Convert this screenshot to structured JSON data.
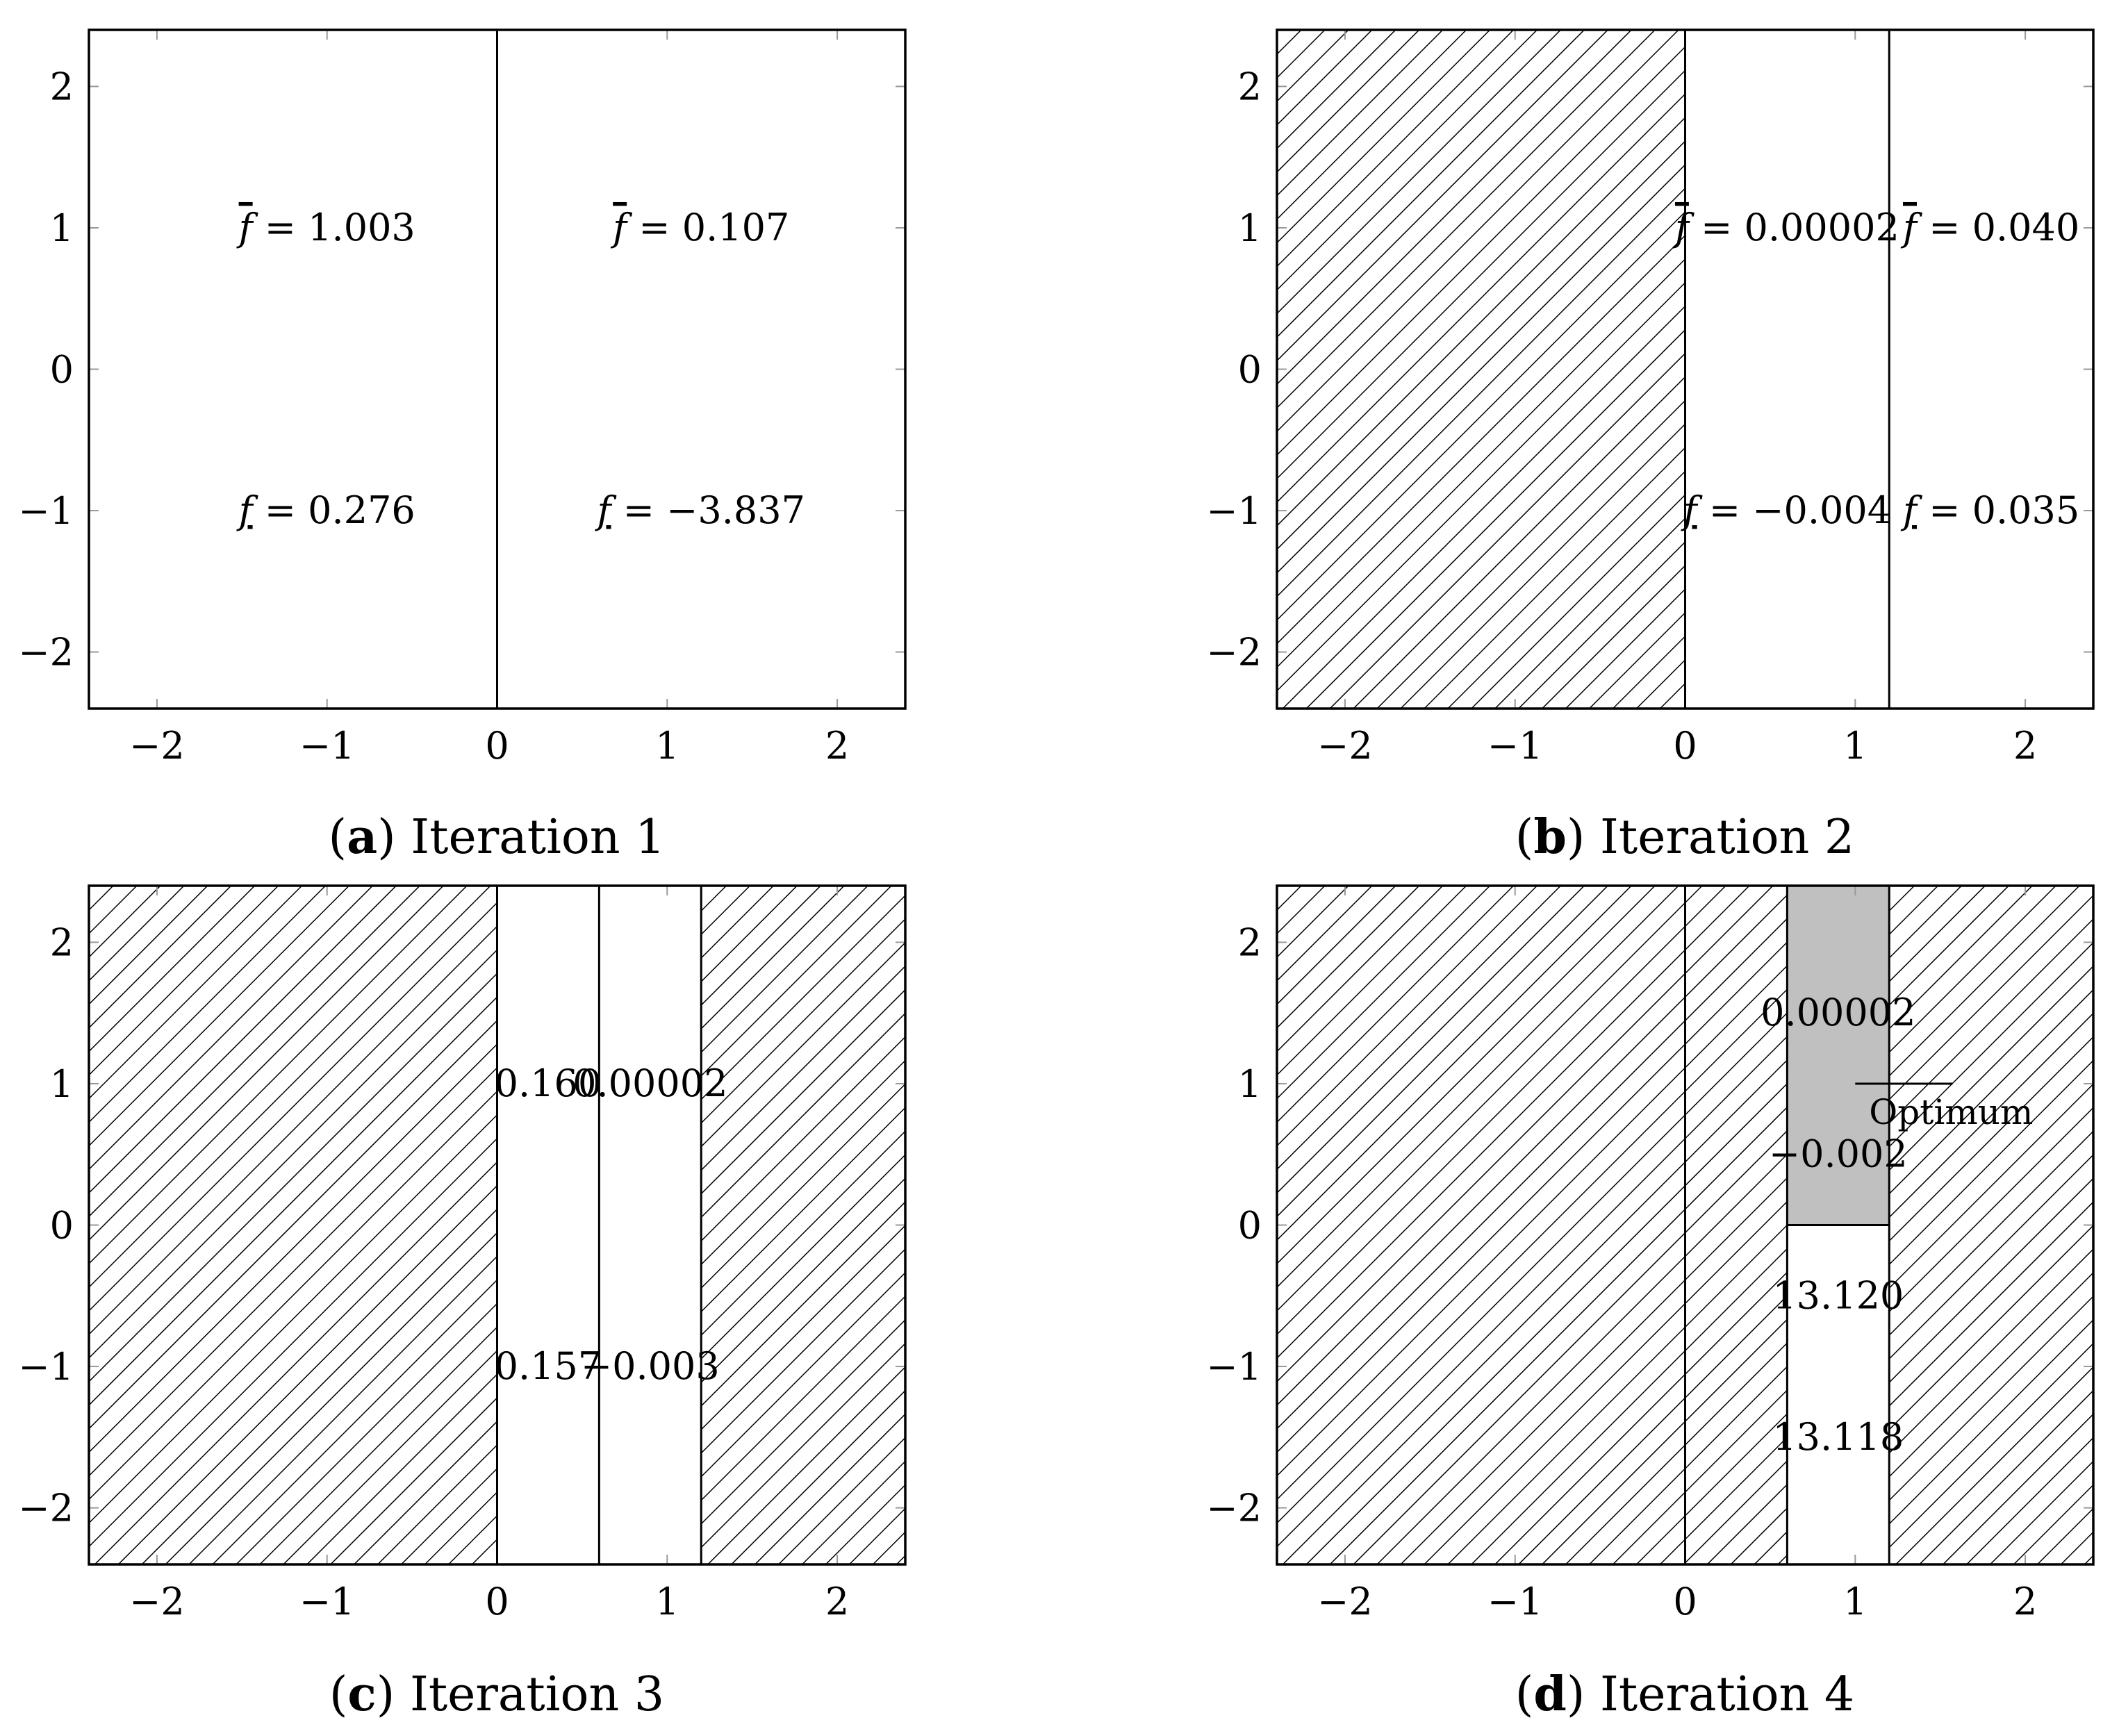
{
  "chart_data": [
    {
      "type": "region-partition",
      "caption_letter": "a",
      "caption_text": "Iteration 1",
      "xlim": [
        -2.4,
        2.4
      ],
      "ylim": [
        -2.4,
        2.4
      ],
      "xticks": [
        -2,
        -1,
        0,
        1,
        2
      ],
      "yticks": [
        -2,
        -1,
        0,
        1,
        2
      ],
      "xtick_labels": [
        "−2",
        "−1",
        "0",
        "1",
        "2"
      ],
      "ytick_labels": [
        "−2",
        "−1",
        "0",
        "1",
        "2"
      ],
      "hatched": [],
      "shaded": [],
      "dividers": [
        {
          "orient": "v",
          "at": 0,
          "from": -2.4,
          "to": 2.4
        }
      ],
      "labels": [
        {
          "x": -1.0,
          "y": 1.0,
          "kind": "upper",
          "value": "1.003"
        },
        {
          "x": -1.0,
          "y": -1.0,
          "kind": "lower",
          "value": "0.276"
        },
        {
          "x": 1.2,
          "y": 1.0,
          "kind": "upper",
          "value": "0.107"
        },
        {
          "x": 1.2,
          "y": -1.0,
          "kind": "lower",
          "value": "−3.837"
        }
      ]
    },
    {
      "type": "region-partition",
      "caption_letter": "b",
      "caption_text": "Iteration 2",
      "xlim": [
        -2.4,
        2.4
      ],
      "ylim": [
        -2.4,
        2.4
      ],
      "xticks": [
        -2,
        -1,
        0,
        1,
        2
      ],
      "yticks": [
        -2,
        -1,
        0,
        1,
        2
      ],
      "xtick_labels": [
        "−2",
        "−1",
        "0",
        "1",
        "2"
      ],
      "ytick_labels": [
        "−2",
        "−1",
        "0",
        "1",
        "2"
      ],
      "hatched": [
        [
          -2.4,
          -2.4,
          0,
          2.4
        ]
      ],
      "shaded": [],
      "dividers": [
        {
          "orient": "v",
          "at": 0,
          "from": -2.4,
          "to": 2.4
        },
        {
          "orient": "v",
          "at": 1.2,
          "from": -2.4,
          "to": 2.4
        }
      ],
      "labels": [
        {
          "x": 0.6,
          "y": 1.0,
          "kind": "upper",
          "value": "0.00002"
        },
        {
          "x": 0.6,
          "y": -1.0,
          "kind": "lower",
          "value": "−0.004"
        },
        {
          "x": 1.8,
          "y": 1.0,
          "kind": "upper",
          "value": "0.040"
        },
        {
          "x": 1.8,
          "y": -1.0,
          "kind": "lower",
          "value": "0.035"
        }
      ]
    },
    {
      "type": "region-partition",
      "caption_letter": "c",
      "caption_text": "Iteration 3",
      "xlim": [
        -2.4,
        2.4
      ],
      "ylim": [
        -2.4,
        2.4
      ],
      "xticks": [
        -2,
        -1,
        0,
        1,
        2
      ],
      "yticks": [
        -2,
        -1,
        0,
        1,
        2
      ],
      "xtick_labels": [
        "−2",
        "−1",
        "0",
        "1",
        "2"
      ],
      "ytick_labels": [
        "−2",
        "−1",
        "0",
        "1",
        "2"
      ],
      "hatched": [
        [
          -2.4,
          -2.4,
          0,
          2.4
        ],
        [
          1.2,
          -2.4,
          2.4,
          2.4
        ]
      ],
      "shaded": [],
      "dividers": [
        {
          "orient": "v",
          "at": 0,
          "from": -2.4,
          "to": 2.4
        },
        {
          "orient": "v",
          "at": 0.6,
          "from": -2.4,
          "to": 2.4
        },
        {
          "orient": "v",
          "at": 1.2,
          "from": -2.4,
          "to": 2.4
        }
      ],
      "labels": [
        {
          "x": 0.3,
          "y": 1.0,
          "kind": "plain",
          "value": "0.160"
        },
        {
          "x": 0.9,
          "y": 1.0,
          "kind": "plain",
          "value": "0.00002"
        },
        {
          "x": 0.3,
          "y": -1.0,
          "kind": "plain",
          "value": "0.157"
        },
        {
          "x": 0.9,
          "y": -1.0,
          "kind": "plain",
          "value": "−0.003"
        }
      ]
    },
    {
      "type": "region-partition",
      "caption_letter": "d",
      "caption_text": "Iteration 4",
      "xlim": [
        -2.4,
        2.4
      ],
      "ylim": [
        -2.4,
        2.4
      ],
      "xticks": [
        -2,
        -1,
        0,
        1,
        2
      ],
      "yticks": [
        -2,
        -1,
        0,
        1,
        2
      ],
      "xtick_labels": [
        "−2",
        "−1",
        "0",
        "1",
        "2"
      ],
      "ytick_labels": [
        "−2",
        "−1",
        "0",
        "1",
        "2"
      ],
      "hatched": [
        [
          -2.4,
          -2.4,
          0.6,
          2.4
        ],
        [
          1.2,
          -2.4,
          2.4,
          2.4
        ]
      ],
      "shaded": [
        [
          0.6,
          0,
          1.2,
          2.4
        ]
      ],
      "shade_color": "#c0c0c0",
      "dividers": [
        {
          "orient": "v",
          "at": 0,
          "from": -2.4,
          "to": 2.4
        },
        {
          "orient": "v",
          "at": 0.6,
          "from": -2.4,
          "to": 2.4
        },
        {
          "orient": "v",
          "at": 1.2,
          "from": -2.4,
          "to": 2.4
        },
        {
          "orient": "h",
          "at": 0,
          "from": 0.6,
          "to": 1.2
        }
      ],
      "labels": [
        {
          "x": 0.9,
          "y": 1.5,
          "kind": "plain",
          "value": "0.00002"
        },
        {
          "x": 0.9,
          "y": 0.5,
          "kind": "plain",
          "value": "−0.002"
        },
        {
          "x": 0.9,
          "y": -0.5,
          "kind": "plain",
          "value": "13.120"
        },
        {
          "x": 0.9,
          "y": -1.5,
          "kind": "plain",
          "value": "13.118"
        }
      ],
      "optimum": {
        "x": 1.0,
        "y": 1.0,
        "label": "Optimum"
      }
    }
  ]
}
